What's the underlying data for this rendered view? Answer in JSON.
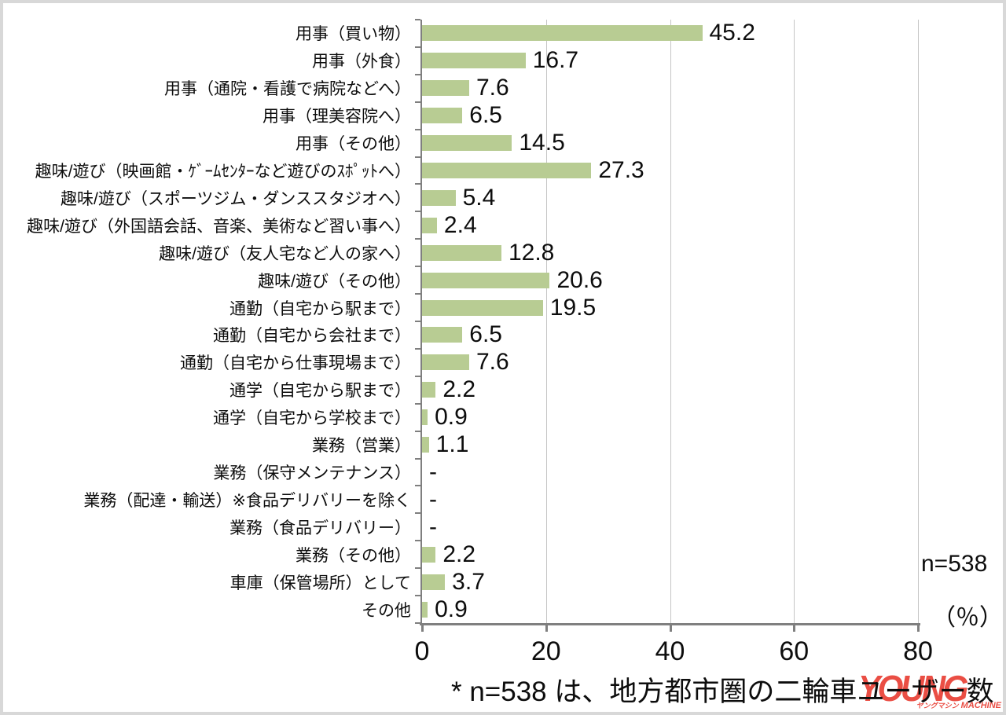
{
  "page": {
    "background": "#ffffff",
    "border_color": "#d8d8d8"
  },
  "chart_data": {
    "type": "bar",
    "orientation": "horizontal",
    "title": "",
    "xlabel": "",
    "ylabel": "",
    "categories": [
      "用事（買い物）",
      "用事（外食）",
      "用事（通院・看護で病院などへ）",
      "用事（理美容院へ）",
      "用事（その他）",
      "趣味/遊び（映画館・ｹﾞｰﾑｾﾝﾀｰなど遊びのｽﾎﾟｯﾄへ）",
      "趣味/遊び（スポーツジム・ダンススタジオへ）",
      "趣味/遊び（外国語会話、音楽、美術など習い事へ）",
      "趣味/遊び（友人宅など人の家へ）",
      "趣味/遊び（その他）",
      "通勤（自宅から駅まで）",
      "通勤（自宅から会社まで）",
      "通勤（自宅から仕事現場まで）",
      "通学（自宅から駅まで）",
      "通学（自宅から学校まで）",
      "業務（営業）",
      "業務（保守メンテナンス）",
      "業務（配達・輸送）※食品デリバリーを除く",
      "業務（食品デリバリー）",
      "業務（その他）",
      "車庫（保管場所）として",
      "その他"
    ],
    "values": [
      45.2,
      16.7,
      7.6,
      6.5,
      14.5,
      27.3,
      5.4,
      2.4,
      12.8,
      20.6,
      19.5,
      6.5,
      7.6,
      2.2,
      0.9,
      1.1,
      null,
      null,
      null,
      2.2,
      3.7,
      0.9
    ],
    "value_labels": [
      "45.2",
      "16.7",
      "7.6",
      "6.5",
      "14.5",
      "27.3",
      "5.4",
      "2.4",
      "12.8",
      "20.6",
      "19.5",
      "6.5",
      "7.6",
      "2.2",
      "0.9",
      "1.1",
      "-",
      "-",
      "-",
      "2.2",
      "3.7",
      "0.9"
    ],
    "xlim": [
      0,
      80
    ],
    "x_ticks": [
      0,
      20,
      40,
      60,
      80
    ],
    "grid": true,
    "legend": "none",
    "bar_color": "#b8cc93",
    "gridline_color": "#c5c5c5",
    "axis_color": "#7f7f7f",
    "unit_label": "（％）",
    "sample_size_label": "n=538"
  },
  "annotations": {
    "footnote": "* n=538 は、地方都市圏の二輪車ユーザー数"
  },
  "watermark": {
    "wordmark": "YOUNG",
    "subtext_jp": "ヤングマシン",
    "subtext_en": "MACHINE",
    "color": "#e8362b"
  }
}
